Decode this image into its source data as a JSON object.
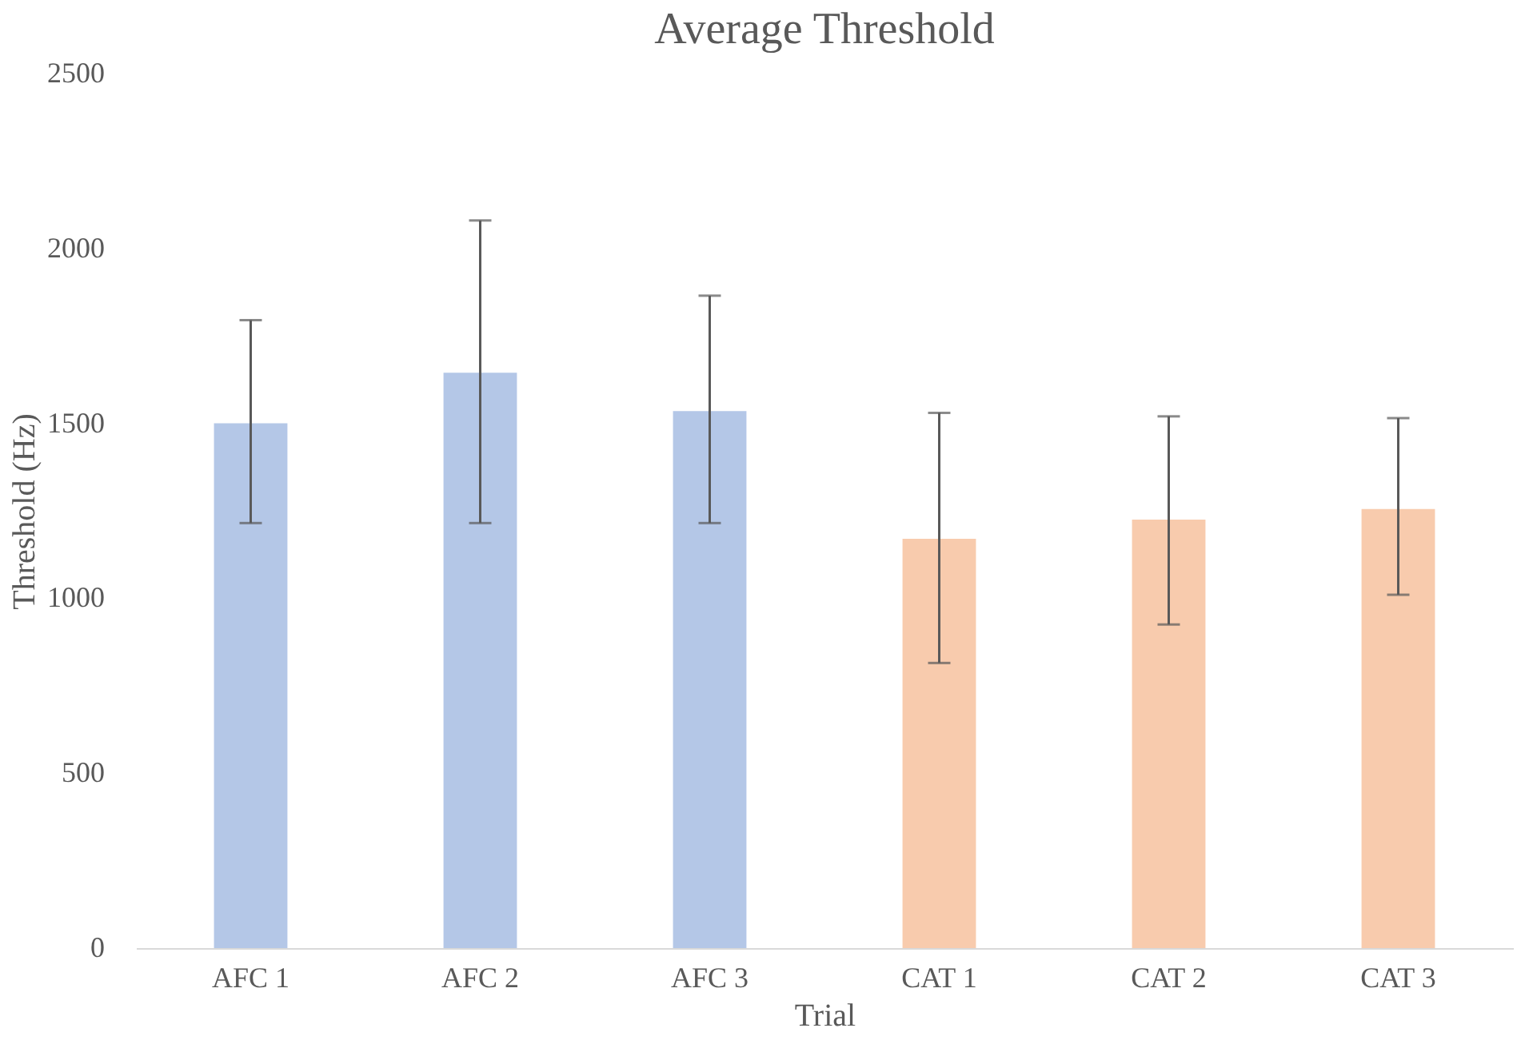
{
  "chart_data": {
    "type": "bar",
    "title": "Average Threshold",
    "xlabel": "Trial",
    "ylabel": "Threshold (Hz)",
    "categories": [
      "AFC 1",
      "AFC 2",
      "AFC 3",
      "CAT 1",
      "CAT 2",
      "CAT 3"
    ],
    "values": [
      1500,
      1645,
      1535,
      1170,
      1225,
      1255
    ],
    "colors": [
      "#b4c7e7",
      "#b4c7e7",
      "#b4c7e7",
      "#f8cbad",
      "#f8cbad",
      "#f8cbad"
    ],
    "errors": [
      [
        1215,
        1795
      ],
      [
        1215,
        2080
      ],
      [
        1215,
        1865
      ],
      [
        815,
        1530
      ],
      [
        925,
        1520
      ],
      [
        1010,
        1515
      ]
    ],
    "ylim": [
      0,
      2500
    ],
    "yticks": [
      0,
      500,
      1000,
      1500,
      2000,
      2500
    ],
    "grid": false
  }
}
